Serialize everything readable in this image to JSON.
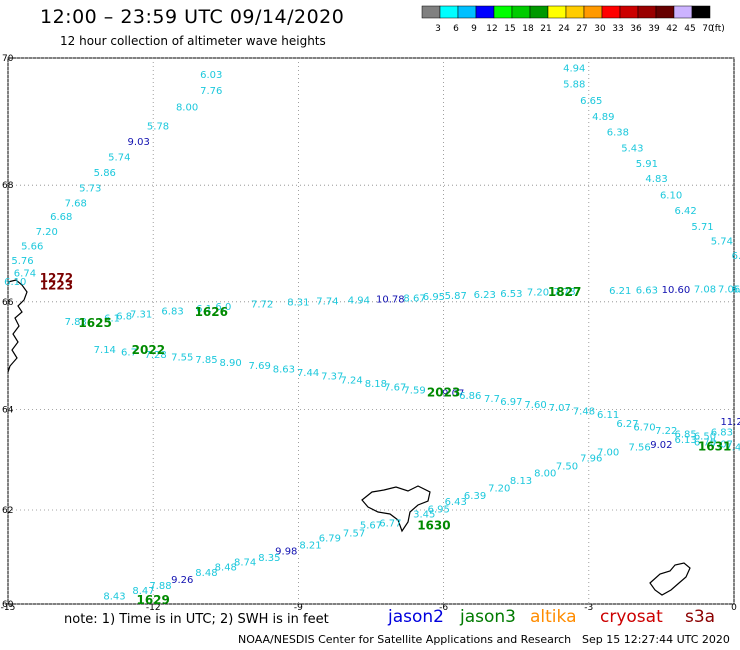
{
  "header": {
    "title": "12:00 – 23:59 UTC 09/14/2020",
    "subtitle": "12 hour collection of altimeter wave heights"
  },
  "colorbar": {
    "colors": [
      "#808080",
      "#00ffff",
      "#00c0ff",
      "#0000ff",
      "#00ff00",
      "#00cc00",
      "#009900",
      "#ffff00",
      "#ffcc00",
      "#ff9900",
      "#ff0000",
      "#cc0000",
      "#990000",
      "#660000",
      "#ccb3ff",
      "#000000"
    ],
    "labels": [
      "3",
      "6",
      "9",
      "12",
      "15",
      "18",
      "21",
      "24",
      "27",
      "30",
      "33",
      "36",
      "39",
      "42",
      "45",
      "70",
      "(ft)"
    ]
  },
  "map": {
    "lat_labels": [
      "70",
      "68",
      "66",
      "64",
      "62",
      "60"
    ],
    "lon_labels": [
      "-15",
      "-12",
      "-9",
      "-6",
      "-3",
      "0"
    ],
    "colors": {
      "cyan": "#1cc8dc",
      "blue": "#1010b0",
      "green": "#008a00",
      "darkred": "#7a0000",
      "grid": "#888888"
    },
    "points": [
      {
        "t": "6.03",
        "lon": -10.8,
        "lat": 69.7,
        "c": "cyan"
      },
      {
        "t": "7.76",
        "lon": -10.8,
        "lat": 69.45,
        "c": "cyan"
      },
      {
        "t": "8.00",
        "lon": -11.3,
        "lat": 69.2,
        "c": "cyan"
      },
      {
        "t": "5.78",
        "lon": -11.9,
        "lat": 68.9,
        "c": "cyan"
      },
      {
        "t": "9.03",
        "lon": -12.3,
        "lat": 68.65,
        "c": "blue"
      },
      {
        "t": "5.74",
        "lon": -12.7,
        "lat": 68.4,
        "c": "cyan"
      },
      {
        "t": "5.86",
        "lon": -13.0,
        "lat": 68.15,
        "c": "cyan"
      },
      {
        "t": "5.73",
        "lon": -13.3,
        "lat": 67.9,
        "c": "cyan"
      },
      {
        "t": "7.68",
        "lon": -13.6,
        "lat": 67.65,
        "c": "cyan"
      },
      {
        "t": "6.68",
        "lon": -13.9,
        "lat": 67.42,
        "c": "cyan"
      },
      {
        "t": "7.20",
        "lon": -14.2,
        "lat": 67.17,
        "c": "cyan"
      },
      {
        "t": "5.66",
        "lon": -14.5,
        "lat": 66.92,
        "c": "cyan"
      },
      {
        "t": "5.76",
        "lon": -14.7,
        "lat": 66.67,
        "c": "cyan"
      },
      {
        "t": "6.74",
        "lon": -14.65,
        "lat": 66.45,
        "c": "cyan"
      },
      {
        "t": "6.10",
        "lon": -14.85,
        "lat": 66.3,
        "c": "cyan"
      },
      {
        "t": "4.94",
        "lon": -3.3,
        "lat": 69.8,
        "c": "cyan"
      },
      {
        "t": "5.88",
        "lon": -3.3,
        "lat": 69.55,
        "c": "cyan"
      },
      {
        "t": "6.65",
        "lon": -2.95,
        "lat": 69.3,
        "c": "cyan"
      },
      {
        "t": "4.89",
        "lon": -2.7,
        "lat": 69.05,
        "c": "cyan"
      },
      {
        "t": "6.38",
        "lon": -2.4,
        "lat": 68.8,
        "c": "cyan"
      },
      {
        "t": "5.43",
        "lon": -2.1,
        "lat": 68.55,
        "c": "cyan"
      },
      {
        "t": "5.91",
        "lon": -1.8,
        "lat": 68.3,
        "c": "cyan"
      },
      {
        "t": "4.83",
        "lon": -1.6,
        "lat": 68.05,
        "c": "cyan"
      },
      {
        "t": "6.10",
        "lon": -1.3,
        "lat": 67.78,
        "c": "cyan"
      },
      {
        "t": "6.42",
        "lon": -1.0,
        "lat": 67.52,
        "c": "cyan"
      },
      {
        "t": "5.71",
        "lon": -0.65,
        "lat": 67.25,
        "c": "cyan"
      },
      {
        "t": "5.74",
        "lon": -0.25,
        "lat": 67.0,
        "c": "cyan"
      },
      {
        "t": "6.",
        "lon": 0.05,
        "lat": 66.75,
        "c": "cyan"
      },
      {
        "t": "7.83",
        "lon": -13.6,
        "lat": 65.58,
        "c": "cyan"
      },
      {
        "t": "6.1",
        "lon": -12.85,
        "lat": 65.65,
        "c": "cyan"
      },
      {
        "t": "6.8",
        "lon": -12.6,
        "lat": 65.68,
        "c": "cyan"
      },
      {
        "t": "7.31",
        "lon": -12.25,
        "lat": 65.72,
        "c": "cyan"
      },
      {
        "t": "6.83",
        "lon": -11.6,
        "lat": 65.77,
        "c": "cyan"
      },
      {
        "t": "6.1",
        "lon": -10.95,
        "lat": 65.82,
        "c": "cyan"
      },
      {
        "t": "6.0",
        "lon": -10.55,
        "lat": 65.85,
        "c": "cyan"
      },
      {
        "t": "7.72",
        "lon": -9.75,
        "lat": 65.9,
        "c": "cyan"
      },
      {
        "t": "8.31",
        "lon": -9.0,
        "lat": 65.93,
        "c": "cyan"
      },
      {
        "t": "7.74",
        "lon": -8.4,
        "lat": 65.95,
        "c": "cyan"
      },
      {
        "t": "4.94",
        "lon": -7.75,
        "lat": 65.97,
        "c": "cyan"
      },
      {
        "t": "10.78",
        "lon": -7.1,
        "lat": 65.99,
        "c": "blue"
      },
      {
        "t": "8.67",
        "lon": -6.6,
        "lat": 66.01,
        "c": "cyan"
      },
      {
        "t": "6.95",
        "lon": -6.2,
        "lat": 66.03,
        "c": "cyan"
      },
      {
        "t": "5.87",
        "lon": -5.75,
        "lat": 66.05,
        "c": "cyan"
      },
      {
        "t": "6.23",
        "lon": -5.15,
        "lat": 66.07,
        "c": "cyan"
      },
      {
        "t": "6.53",
        "lon": -4.6,
        "lat": 66.09,
        "c": "cyan"
      },
      {
        "t": "7.20",
        "lon": -4.05,
        "lat": 66.11,
        "c": "cyan"
      },
      {
        "t": "7.73",
        "lon": -3.5,
        "lat": 66.12,
        "c": "cyan"
      },
      {
        "t": "6.21",
        "lon": -2.35,
        "lat": 66.14,
        "c": "cyan"
      },
      {
        "t": "6.63",
        "lon": -1.8,
        "lat": 66.15,
        "c": "cyan"
      },
      {
        "t": "10.60",
        "lon": -1.2,
        "lat": 66.16,
        "c": "blue"
      },
      {
        "t": "7.08",
        "lon": -0.6,
        "lat": 66.17,
        "c": "cyan"
      },
      {
        "t": "7.06",
        "lon": -0.1,
        "lat": 66.17,
        "c": "cyan"
      },
      {
        "t": "6.",
        "lon": 0.05,
        "lat": 66.17,
        "c": "cyan"
      },
      {
        "t": "7.14",
        "lon": -13.0,
        "lat": 65.07,
        "c": "cyan"
      },
      {
        "t": "6.7",
        "lon": -12.5,
        "lat": 65.02,
        "c": "cyan"
      },
      {
        "t": "7.28",
        "lon": -11.95,
        "lat": 64.98,
        "c": "cyan"
      },
      {
        "t": "7.55",
        "lon": -11.4,
        "lat": 64.93,
        "c": "cyan"
      },
      {
        "t": "7.85",
        "lon": -10.9,
        "lat": 64.88,
        "c": "cyan"
      },
      {
        "t": "8.90",
        "lon": -10.4,
        "lat": 64.83,
        "c": "cyan"
      },
      {
        "t": "7.69",
        "lon": -9.8,
        "lat": 64.77,
        "c": "cyan"
      },
      {
        "t": "8.63",
        "lon": -9.3,
        "lat": 64.71,
        "c": "cyan"
      },
      {
        "t": "7.44",
        "lon": -8.8,
        "lat": 64.64,
        "c": "cyan"
      },
      {
        "t": "7.37",
        "lon": -8.3,
        "lat": 64.57,
        "c": "cyan"
      },
      {
        "t": "7.24",
        "lon": -7.9,
        "lat": 64.5,
        "c": "cyan"
      },
      {
        "t": "8.18",
        "lon": -7.4,
        "lat": 64.43,
        "c": "cyan"
      },
      {
        "t": "7.67",
        "lon": -7.0,
        "lat": 64.37,
        "c": "cyan"
      },
      {
        "t": "7.59",
        "lon": -6.6,
        "lat": 64.31,
        "c": "cyan"
      },
      {
        "t": "9.07",
        "lon": -5.8,
        "lat": 64.25,
        "c": "blue"
      },
      {
        "t": "6.86",
        "lon": -5.45,
        "lat": 64.2,
        "c": "cyan"
      },
      {
        "t": "7.7",
        "lon": -5.0,
        "lat": 64.15,
        "c": "cyan"
      },
      {
        "t": "6.97",
        "lon": -4.6,
        "lat": 64.09,
        "c": "cyan"
      },
      {
        "t": "7.60",
        "lon": -4.1,
        "lat": 64.03,
        "c": "cyan"
      },
      {
        "t": "7.07",
        "lon": -3.6,
        "lat": 63.97,
        "c": "cyan"
      },
      {
        "t": "7.48",
        "lon": -3.1,
        "lat": 63.91,
        "c": "cyan"
      },
      {
        "t": "6.11",
        "lon": -2.6,
        "lat": 63.84,
        "c": "cyan"
      },
      {
        "t": "6.27",
        "lon": -2.2,
        "lat": 63.66,
        "c": "cyan"
      },
      {
        "t": "6.70",
        "lon": -1.85,
        "lat": 63.6,
        "c": "cyan"
      },
      {
        "t": "7.22",
        "lon": -1.4,
        "lat": 63.53,
        "c": "cyan"
      },
      {
        "t": "6.85",
        "lon": -1.0,
        "lat": 63.46,
        "c": "cyan"
      },
      {
        "t": "6.50",
        "lon": -0.6,
        "lat": 63.42,
        "c": "cyan"
      },
      {
        "t": "6.83",
        "lon": -0.25,
        "lat": 63.5,
        "c": "cyan"
      },
      {
        "t": "11.2",
        "lon": -0.05,
        "lat": 63.7,
        "c": "blue"
      },
      {
        "t": "6.13",
        "lon": -1.0,
        "lat": 63.35,
        "c": "cyan"
      },
      {
        "t": "6.70",
        "lon": -0.6,
        "lat": 63.3,
        "c": "cyan"
      },
      {
        "t": "7.07",
        "lon": -0.25,
        "lat": 63.26,
        "c": "cyan"
      },
      {
        "t": "7.49",
        "lon": 0.05,
        "lat": 63.2,
        "c": "cyan"
      },
      {
        "t": "9.02",
        "lon": -1.5,
        "lat": 63.25,
        "c": "blue"
      },
      {
        "t": "7.56",
        "lon": -1.95,
        "lat": 63.2,
        "c": "cyan"
      },
      {
        "t": "7.00",
        "lon": -2.6,
        "lat": 63.1,
        "c": "cyan"
      },
      {
        "t": "7.96",
        "lon": -2.95,
        "lat": 62.98,
        "c": "cyan"
      },
      {
        "t": "7.50",
        "lon": -3.45,
        "lat": 62.82,
        "c": "cyan"
      },
      {
        "t": "8.00",
        "lon": -3.9,
        "lat": 62.68,
        "c": "cyan"
      },
      {
        "t": "8.13",
        "lon": -4.4,
        "lat": 62.53,
        "c": "cyan"
      },
      {
        "t": "7.20",
        "lon": -4.85,
        "lat": 62.38,
        "c": "cyan"
      },
      {
        "t": "6.39",
        "lon": -5.35,
        "lat": 62.23,
        "c": "cyan"
      },
      {
        "t": "6.43",
        "lon": -5.75,
        "lat": 62.1,
        "c": "cyan"
      },
      {
        "t": "6.95",
        "lon": -6.1,
        "lat": 61.95,
        "c": "cyan"
      },
      {
        "t": "3.45",
        "lon": -6.4,
        "lat": 61.85,
        "c": "cyan"
      },
      {
        "t": "6.77",
        "lon": -7.1,
        "lat": 61.66,
        "c": "cyan"
      },
      {
        "t": "5.67",
        "lon": -7.5,
        "lat": 61.62,
        "c": "cyan"
      },
      {
        "t": "7.57",
        "lon": -7.85,
        "lat": 61.45,
        "c": "cyan"
      },
      {
        "t": "6.79",
        "lon": -8.35,
        "lat": 61.34,
        "c": "cyan"
      },
      {
        "t": "8.21",
        "lon": -8.75,
        "lat": 61.2,
        "c": "cyan"
      },
      {
        "t": "9.98",
        "lon": -9.25,
        "lat": 61.07,
        "c": "blue"
      },
      {
        "t": "8.35",
        "lon": -9.6,
        "lat": 60.93,
        "c": "cyan"
      },
      {
        "t": "8.74",
        "lon": -10.1,
        "lat": 60.83,
        "c": "cyan"
      },
      {
        "t": "8.48",
        "lon": -10.5,
        "lat": 60.73,
        "c": "cyan"
      },
      {
        "t": "8.48",
        "lon": -10.9,
        "lat": 60.61,
        "c": "cyan"
      },
      {
        "t": "9.26",
        "lon": -11.4,
        "lat": 60.46,
        "c": "blue"
      },
      {
        "t": "7.88",
        "lon": -11.85,
        "lat": 60.33,
        "c": "cyan"
      },
      {
        "t": "8.47",
        "lon": -12.2,
        "lat": 60.22,
        "c": "cyan"
      },
      {
        "t": "8.43",
        "lon": -12.8,
        "lat": 60.1,
        "c": "cyan"
      }
    ],
    "passes": [
      {
        "t": "1272",
        "lon": -14.0,
        "lat": 66.35,
        "c": "darkred"
      },
      {
        "t": "1223",
        "lon": -14.0,
        "lat": 66.22,
        "c": "darkred"
      },
      {
        "t": "1625",
        "lon": -13.2,
        "lat": 65.55,
        "c": "green"
      },
      {
        "t": "1626",
        "lon": -10.8,
        "lat": 65.75,
        "c": "green"
      },
      {
        "t": "2022",
        "lon": -12.1,
        "lat": 65.05,
        "c": "green"
      },
      {
        "t": "1827",
        "lon": -3.5,
        "lat": 66.1,
        "c": "green"
      },
      {
        "t": "2023",
        "lon": -6.0,
        "lat": 64.25,
        "c": "green"
      },
      {
        "t": "1631",
        "lon": -0.4,
        "lat": 63.2,
        "c": "green"
      },
      {
        "t": "1630",
        "lon": -6.2,
        "lat": 61.6,
        "c": "green"
      },
      {
        "t": "1629",
        "lon": -12.0,
        "lat": 60.0,
        "c": "green"
      }
    ]
  },
  "footer": {
    "note": "note: 1) Time is in UTC; 2) SWH is in feet",
    "satellites": [
      {
        "label": "jason2",
        "color": "#0000dd"
      },
      {
        "label": "jason3",
        "color": "#007a00"
      },
      {
        "label": "altika",
        "color": "#ff8c00"
      },
      {
        "label": "cryosat",
        "color": "#cc0000"
      },
      {
        "label": "s3a",
        "color": "#8b0000"
      }
    ],
    "credit": "NOAA/NESDIS Center for Satellite Applications and Research",
    "timestamp": "Sep 15 12:27:44 UTC 2020"
  }
}
